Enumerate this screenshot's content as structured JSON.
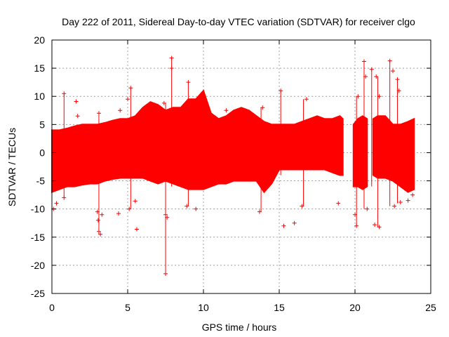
{
  "chart_data": {
    "type": "scatter",
    "title": "Day 222 of 2011, Sidereal Day-to-day VTEC variation (SDTVAR) for receiver clgo",
    "xlabel": "GPS time / hours",
    "ylabel": "SDTVAR / TECUs",
    "xlim": [
      0,
      25
    ],
    "ylim": [
      -25,
      20
    ],
    "xticks": [
      0,
      5,
      10,
      15,
      20,
      25
    ],
    "xtick_labels": [
      "0",
      "5",
      "10",
      "15",
      "20",
      "25"
    ],
    "yticks": [
      -25,
      -20,
      -15,
      -10,
      -5,
      0,
      5,
      10,
      15,
      20
    ],
    "ytick_labels": [
      "-25",
      "-20",
      "-15",
      "-10",
      "-5",
      "0",
      "5",
      "10",
      "15",
      "20"
    ],
    "grid": true,
    "marker": "+",
    "color": "#ff0000",
    "data_gaps_hours": [
      [
        19.2,
        19.9
      ],
      [
        20.8,
        21.2
      ]
    ],
    "dense_band": {
      "x": [
        0,
        0.5,
        1,
        1.5,
        2,
        2.5,
        3,
        3.5,
        4,
        4.5,
        5,
        5.5,
        6,
        6.5,
        7,
        7.5,
        8,
        8.5,
        9,
        9.5,
        10,
        10.5,
        11,
        11.5,
        12,
        12.5,
        13,
        13.5,
        14,
        14.5,
        15,
        15.5,
        16,
        16.5,
        17,
        17.5,
        18,
        18.5,
        19,
        19.2,
        19.9,
        20.2,
        20.5,
        20.8,
        21.2,
        21.5,
        22,
        22.5,
        23,
        23.5,
        23.9
      ],
      "upper": [
        4,
        4,
        4.3,
        4.7,
        5,
        5,
        5,
        5.3,
        5.7,
        6,
        6,
        6.5,
        8,
        9,
        8.5,
        7.5,
        8,
        8,
        9.5,
        9.5,
        11,
        7,
        6,
        6.5,
        7.5,
        8,
        7.5,
        6.5,
        5.5,
        5,
        5,
        5,
        5,
        5.5,
        6,
        6.5,
        6,
        6,
        6.5,
        6,
        5,
        6,
        6.5,
        6,
        6,
        6.5,
        6.5,
        5,
        5,
        5.5,
        6
      ],
      "lower": [
        -7,
        -6.5,
        -6,
        -6,
        -5.7,
        -5.5,
        -5.5,
        -5,
        -4.7,
        -4.5,
        -4.5,
        -4.5,
        -4.5,
        -5,
        -5.5,
        -5,
        -5.5,
        -6,
        -6.5,
        -6.5,
        -6.5,
        -6,
        -5.5,
        -5.5,
        -5,
        -5,
        -5,
        -5,
        -7,
        -5.5,
        -3,
        -3,
        -3,
        -3,
        -3,
        -3,
        -3,
        -3.5,
        -4,
        -4,
        -6,
        -6,
        -6.5,
        -6,
        -4,
        -4.5,
        -4.5,
        -5,
        -6,
        -7,
        -6.5
      ]
    },
    "outliers": [
      {
        "x": 0.1,
        "y": -10
      },
      {
        "x": 0.3,
        "y": -9
      },
      {
        "x": 0.8,
        "y": 10.5
      },
      {
        "x": 0.8,
        "y": -8
      },
      {
        "x": 1.6,
        "y": 9.1
      },
      {
        "x": 1.7,
        "y": 6.5
      },
      {
        "x": 3.0,
        "y": -10.5
      },
      {
        "x": 3.05,
        "y": -12
      },
      {
        "x": 3.1,
        "y": -14
      },
      {
        "x": 3.2,
        "y": -14.5
      },
      {
        "x": 3.3,
        "y": -11
      },
      {
        "x": 3.1,
        "y": 7
      },
      {
        "x": 4.4,
        "y": -10.8
      },
      {
        "x": 4.5,
        "y": 7.5
      },
      {
        "x": 5.0,
        "y": 9.5
      },
      {
        "x": 5.1,
        "y": -10
      },
      {
        "x": 5.2,
        "y": 11.5
      },
      {
        "x": 5.5,
        "y": -8.6
      },
      {
        "x": 5.6,
        "y": -13.6
      },
      {
        "x": 7.4,
        "y": 8.8
      },
      {
        "x": 7.5,
        "y": -11
      },
      {
        "x": 7.5,
        "y": -21.5
      },
      {
        "x": 7.6,
        "y": -11.5
      },
      {
        "x": 7.9,
        "y": 16.8
      },
      {
        "x": 7.9,
        "y": 15
      },
      {
        "x": 8.9,
        "y": -9.5
      },
      {
        "x": 9.0,
        "y": 12.5
      },
      {
        "x": 9.5,
        "y": -10
      },
      {
        "x": 11.5,
        "y": 7.5
      },
      {
        "x": 13.7,
        "y": -10.5
      },
      {
        "x": 13.9,
        "y": 8
      },
      {
        "x": 15.1,
        "y": 11
      },
      {
        "x": 15.3,
        "y": -13
      },
      {
        "x": 16.0,
        "y": -12.5
      },
      {
        "x": 16.5,
        "y": -9.5
      },
      {
        "x": 16.8,
        "y": 9.5
      },
      {
        "x": 18.9,
        "y": -9
      },
      {
        "x": 20.0,
        "y": -11
      },
      {
        "x": 20.1,
        "y": -13
      },
      {
        "x": 20.2,
        "y": 10
      },
      {
        "x": 20.6,
        "y": 16.2
      },
      {
        "x": 20.7,
        "y": 13.5
      },
      {
        "x": 20.8,
        "y": -10
      },
      {
        "x": 21.1,
        "y": 14.8
      },
      {
        "x": 21.3,
        "y": -12.8
      },
      {
        "x": 21.4,
        "y": 13.5
      },
      {
        "x": 21.6,
        "y": 10
      },
      {
        "x": 21.6,
        "y": -13.2
      },
      {
        "x": 22.3,
        "y": 16.3
      },
      {
        "x": 22.5,
        "y": 14.5
      },
      {
        "x": 22.6,
        "y": -9.5
      },
      {
        "x": 22.8,
        "y": 13
      },
      {
        "x": 22.9,
        "y": 11
      },
      {
        "x": 23.0,
        "y": -8.8
      },
      {
        "x": 23.5,
        "y": -8.5
      },
      {
        "x": 23.8,
        "y": -7.5
      }
    ],
    "spikes": [
      {
        "x": 0.8,
        "y0": -8,
        "y1": 10.5
      },
      {
        "x": 3.1,
        "y0": -14.5,
        "y1": 7
      },
      {
        "x": 5.2,
        "y0": -10,
        "y1": 11.5
      },
      {
        "x": 7.5,
        "y0": -21.5,
        "y1": 8.8
      },
      {
        "x": 7.9,
        "y0": -6,
        "y1": 16.8
      },
      {
        "x": 9.0,
        "y0": -9.5,
        "y1": 12.5
      },
      {
        "x": 13.8,
        "y0": -10.5,
        "y1": 8
      },
      {
        "x": 15.1,
        "y0": -4,
        "y1": 11
      },
      {
        "x": 16.6,
        "y0": -9.5,
        "y1": 9.5
      },
      {
        "x": 20.1,
        "y0": -13,
        "y1": 10
      },
      {
        "x": 20.6,
        "y0": -10,
        "y1": 16.2
      },
      {
        "x": 21.1,
        "y0": -6,
        "y1": 14.8
      },
      {
        "x": 21.5,
        "y0": -13.2,
        "y1": 13.5
      },
      {
        "x": 22.3,
        "y0": -9.5,
        "y1": 16.3
      },
      {
        "x": 22.8,
        "y0": -9,
        "y1": 13
      }
    ]
  }
}
